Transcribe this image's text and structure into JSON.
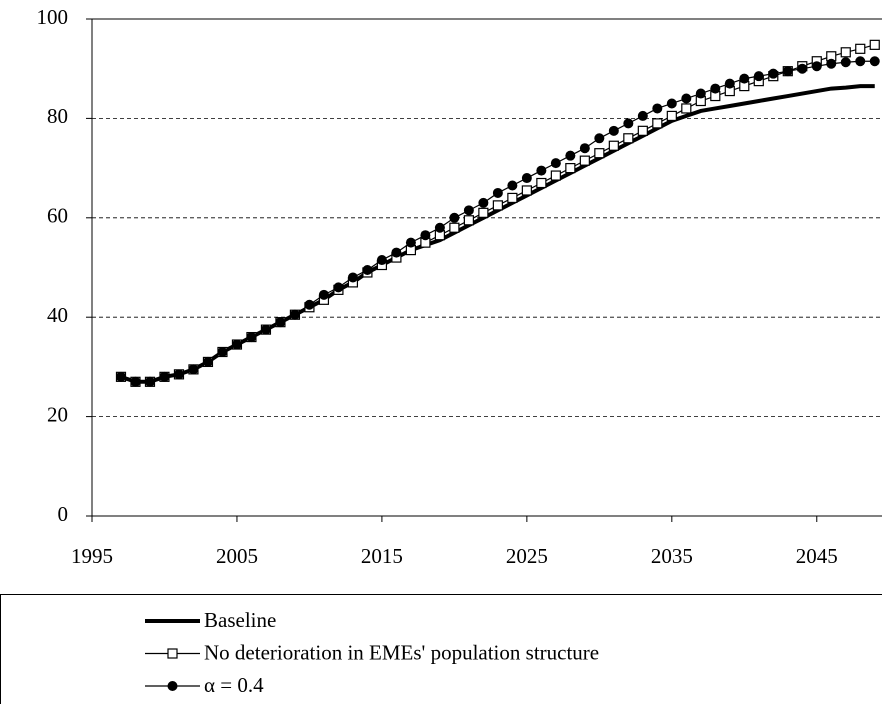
{
  "chart_data": {
    "type": "line",
    "x": [
      1997,
      1998,
      1999,
      2000,
      2001,
      2002,
      2003,
      2004,
      2005,
      2006,
      2007,
      2008,
      2009,
      2010,
      2011,
      2012,
      2013,
      2014,
      2015,
      2016,
      2017,
      2018,
      2019,
      2020,
      2021,
      2022,
      2023,
      2024,
      2025,
      2026,
      2027,
      2028,
      2029,
      2030,
      2031,
      2032,
      2033,
      2034,
      2035,
      2036,
      2037,
      2038,
      2039,
      2040,
      2041,
      2042,
      2043,
      2044,
      2045,
      2046,
      2047,
      2048,
      2049
    ],
    "series": [
      {
        "name": "Baseline",
        "color": "#000000",
        "marker": "none",
        "values": [
          28,
          27,
          27,
          28,
          28.5,
          29.5,
          31,
          33,
          34.5,
          36,
          37.5,
          39,
          40.5,
          42,
          43.5,
          45.5,
          47,
          49,
          50.5,
          52,
          53.5,
          54.5,
          55.5,
          57,
          58.5,
          60,
          61.5,
          63,
          64.5,
          66,
          67.5,
          69,
          70.5,
          72,
          73.5,
          75,
          76.5,
          78,
          79.5,
          80.5,
          81.5,
          82,
          82.5,
          83,
          83.5,
          84,
          84.5,
          85,
          85.5,
          86,
          86.2,
          86.5,
          86.5
        ]
      },
      {
        "name": "No deterioration in EMEs' population structure",
        "color": "#000000",
        "marker": "square",
        "values": [
          28,
          27,
          27,
          28,
          28.5,
          29.5,
          31,
          33,
          34.5,
          36,
          37.5,
          39,
          40.5,
          42,
          43.5,
          45.5,
          47,
          49,
          50.5,
          52,
          53.5,
          55,
          56.5,
          58,
          59.5,
          61,
          62.5,
          64,
          65.5,
          67,
          68.5,
          70,
          71.5,
          73,
          74.5,
          76,
          77.5,
          79,
          80.5,
          82,
          83.5,
          84.5,
          85.5,
          86.5,
          87.5,
          88.5,
          89.5,
          90.5,
          91.5,
          92.5,
          93.3,
          94,
          94.8
        ]
      },
      {
        "name": "α = 0.4",
        "color": "#000000",
        "marker": "circle",
        "values": [
          28,
          27,
          27,
          28,
          28.5,
          29.5,
          31,
          33,
          34.5,
          36,
          37.5,
          39,
          40.5,
          42.5,
          44.5,
          46,
          48,
          49.5,
          51.5,
          53,
          55,
          56.5,
          58,
          60,
          61.5,
          63,
          65,
          66.5,
          68,
          69.5,
          71,
          72.5,
          74,
          76,
          77.5,
          79,
          80.5,
          82,
          83,
          84,
          85,
          86,
          87,
          88,
          88.5,
          89,
          89.5,
          90,
          90.5,
          91,
          91.3,
          91.5,
          91.5
        ]
      }
    ],
    "xlim": [
      1995,
      2049.5
    ],
    "xticks": [
      1995,
      2005,
      2015,
      2025,
      2035,
      2045
    ],
    "ylim": [
      0,
      100
    ],
    "yticks": [
      0,
      20,
      40,
      60,
      80,
      100
    ],
    "grid": true,
    "legend": "bottom"
  }
}
